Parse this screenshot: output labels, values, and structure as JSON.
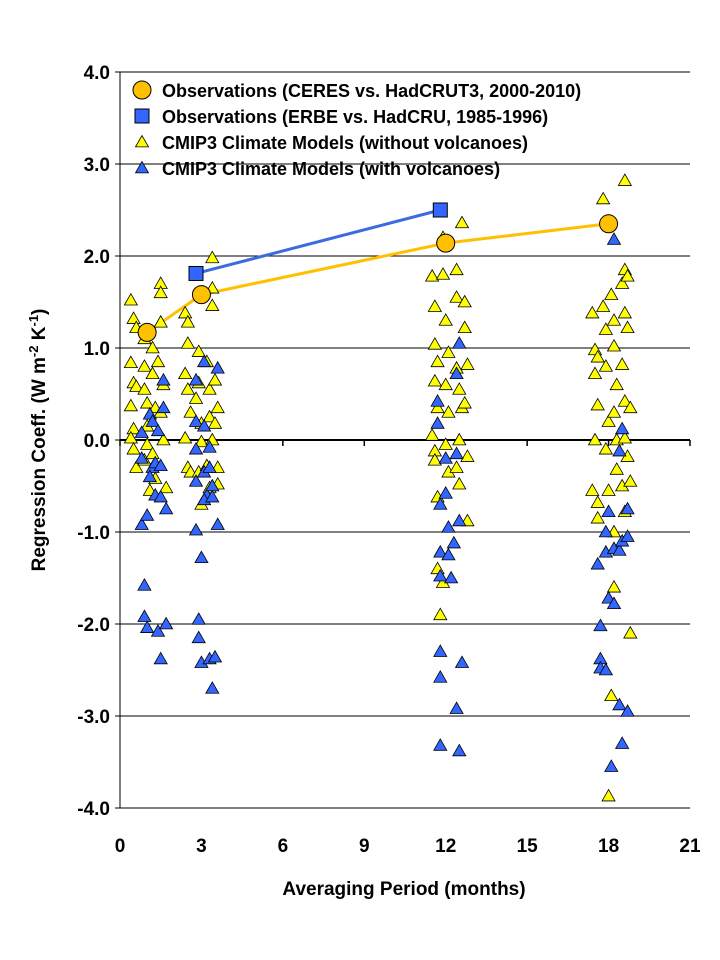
{
  "chart_data": {
    "type": "scatter",
    "title": "",
    "xlabel": "Averaging Period (months)",
    "ylabel_main": "Regression Coeff. (W m",
    "ylabel_sup1": "-2",
    "ylabel_mid": " K",
    "ylabel_sup2": "-1",
    "ylabel_end": ")",
    "xlim": [
      0,
      21
    ],
    "ylim": [
      -4.0,
      4.0
    ],
    "x_ticks": [
      0,
      3,
      6,
      9,
      12,
      15,
      18,
      21
    ],
    "x_tick_labels": [
      "0",
      "3",
      "6",
      "9",
      "12",
      "15",
      "18",
      "21"
    ],
    "y_ticks": [
      4.0,
      3.0,
      2.0,
      1.0,
      0.0,
      -1.0,
      -2.0,
      -3.0,
      -4.0
    ],
    "y_tick_labels": [
      "4.0",
      "3.0",
      "2.0",
      "1.0",
      "0.0",
      "-1.0",
      "-2.0",
      "-3.0",
      "-4.0"
    ],
    "grid": "horizontal",
    "legend_position": "top-left",
    "series": [
      {
        "name": "Observations (CERES vs. HadCRUT3, 2000-2010)",
        "marker": "circle",
        "line": true,
        "color": "#ffc000",
        "line_color": "#ffc000",
        "points": [
          [
            1,
            1.17
          ],
          [
            3,
            1.58
          ],
          [
            12,
            2.14
          ],
          [
            18,
            2.35
          ]
        ]
      },
      {
        "name": "Observations (ERBE vs. HadCRU, 1985-1996)",
        "marker": "square",
        "line": true,
        "color": "#3366ff",
        "line_color": "#3a6be0",
        "points": [
          [
            2.8,
            1.81
          ],
          [
            11.8,
            2.5
          ]
        ]
      },
      {
        "name": "CMIP3 Climate Models (without volcanoes)",
        "marker": "triangle",
        "line": false,
        "color": "#ffff00",
        "points": [
          [
            0.4,
            1.52
          ],
          [
            0.5,
            1.32
          ],
          [
            0.6,
            1.22
          ],
          [
            0.4,
            0.84
          ],
          [
            0.5,
            0.62
          ],
          [
            0.6,
            0.58
          ],
          [
            0.4,
            0.37
          ],
          [
            0.5,
            0.12
          ],
          [
            0.4,
            0.02
          ],
          [
            0.5,
            -0.1
          ],
          [
            0.6,
            -0.3
          ],
          [
            0.9,
            1.1
          ],
          [
            0.9,
            0.8
          ],
          [
            0.9,
            0.55
          ],
          [
            1.0,
            0.4
          ],
          [
            1.0,
            0.15
          ],
          [
            1.0,
            -0.05
          ],
          [
            0.9,
            -0.22
          ],
          [
            1.2,
            1.0
          ],
          [
            1.2,
            0.72
          ],
          [
            1.3,
            0.35
          ],
          [
            1.2,
            -0.15
          ],
          [
            1.3,
            -0.42
          ],
          [
            1.1,
            -0.55
          ],
          [
            1.5,
            1.7
          ],
          [
            1.5,
            1.6
          ],
          [
            1.5,
            1.28
          ],
          [
            1.4,
            0.85
          ],
          [
            1.6,
            0.6
          ],
          [
            1.5,
            0.3
          ],
          [
            1.6,
            0.0
          ],
          [
            1.7,
            -0.52
          ],
          [
            2.4,
            1.38
          ],
          [
            2.5,
            1.28
          ],
          [
            2.5,
            1.05
          ],
          [
            2.4,
            0.72
          ],
          [
            2.5,
            0.55
          ],
          [
            2.6,
            0.3
          ],
          [
            2.4,
            0.02
          ],
          [
            2.5,
            -0.3
          ],
          [
            2.6,
            -0.35
          ],
          [
            2.9,
            0.96
          ],
          [
            2.9,
            0.62
          ],
          [
            2.8,
            0.45
          ],
          [
            3.0,
            0.18
          ],
          [
            3.0,
            -0.02
          ],
          [
            2.9,
            -0.35
          ],
          [
            3.0,
            -0.7
          ],
          [
            3.2,
            0.85
          ],
          [
            3.3,
            0.55
          ],
          [
            3.3,
            0.25
          ],
          [
            3.4,
            0.0
          ],
          [
            3.2,
            -0.28
          ],
          [
            3.3,
            -0.52
          ],
          [
            3.4,
            1.98
          ],
          [
            3.4,
            1.65
          ],
          [
            3.4,
            1.46
          ],
          [
            3.5,
            0.65
          ],
          [
            3.6,
            0.35
          ],
          [
            3.5,
            0.18
          ],
          [
            3.6,
            -0.3
          ],
          [
            3.6,
            -0.48
          ],
          [
            11.5,
            1.78
          ],
          [
            11.6,
            1.45
          ],
          [
            11.6,
            1.04
          ],
          [
            11.7,
            0.85
          ],
          [
            11.6,
            0.64
          ],
          [
            11.7,
            0.35
          ],
          [
            11.5,
            0.05
          ],
          [
            11.6,
            -0.12
          ],
          [
            11.6,
            -0.22
          ],
          [
            11.7,
            -0.62
          ],
          [
            11.7,
            -1.4
          ],
          [
            11.8,
            -1.9
          ],
          [
            11.9,
            2.2
          ],
          [
            11.9,
            1.8
          ],
          [
            12.0,
            1.3
          ],
          [
            12.1,
            0.95
          ],
          [
            12.0,
            0.6
          ],
          [
            12.1,
            0.3
          ],
          [
            12.0,
            -0.05
          ],
          [
            12.1,
            -0.35
          ],
          [
            11.9,
            -1.55
          ],
          [
            12.4,
            1.85
          ],
          [
            12.4,
            1.55
          ],
          [
            12.4,
            0.78
          ],
          [
            12.5,
            0.55
          ],
          [
            12.6,
            0.35
          ],
          [
            12.5,
            0.0
          ],
          [
            12.4,
            -0.3
          ],
          [
            12.5,
            -0.48
          ],
          [
            12.6,
            2.36
          ],
          [
            12.7,
            1.5
          ],
          [
            12.7,
            1.22
          ],
          [
            12.8,
            0.82
          ],
          [
            12.7,
            0.4
          ],
          [
            12.8,
            -0.18
          ],
          [
            12.8,
            -0.88
          ],
          [
            17.4,
            1.38
          ],
          [
            17.5,
            0.98
          ],
          [
            17.6,
            0.9
          ],
          [
            17.5,
            0.72
          ],
          [
            17.6,
            0.38
          ],
          [
            17.5,
            0.0
          ],
          [
            17.4,
            -0.55
          ],
          [
            17.6,
            -0.68
          ],
          [
            17.6,
            -0.85
          ],
          [
            17.8,
            2.62
          ],
          [
            17.8,
            1.45
          ],
          [
            17.9,
            1.2
          ],
          [
            17.9,
            0.8
          ],
          [
            18.0,
            0.2
          ],
          [
            17.9,
            -0.1
          ],
          [
            18.0,
            -0.55
          ],
          [
            18.1,
            1.58
          ],
          [
            18.2,
            1.3
          ],
          [
            18.2,
            1.02
          ],
          [
            18.3,
            0.6
          ],
          [
            18.2,
            0.3
          ],
          [
            18.3,
            0.0
          ],
          [
            18.3,
            -0.32
          ],
          [
            18.2,
            -1.0
          ],
          [
            18.2,
            -1.6
          ],
          [
            18.1,
            -2.78
          ],
          [
            18.0,
            -3.87
          ],
          [
            18.5,
            1.7
          ],
          [
            18.6,
            1.38
          ],
          [
            18.5,
            0.82
          ],
          [
            18.6,
            0.42
          ],
          [
            18.6,
            0.02
          ],
          [
            18.5,
            -0.5
          ],
          [
            18.6,
            -0.78
          ],
          [
            18.6,
            2.82
          ],
          [
            18.6,
            1.85
          ],
          [
            18.7,
            1.78
          ],
          [
            18.7,
            1.22
          ],
          [
            18.8,
            0.35
          ],
          [
            18.7,
            -0.18
          ],
          [
            18.8,
            -0.45
          ],
          [
            18.8,
            -2.1
          ]
        ]
      },
      {
        "name": "CMIP3 Climate Models (with volcanoes)",
        "marker": "triangle",
        "line": false,
        "color": "#3366ff",
        "points": [
          [
            0.8,
            0.08
          ],
          [
            0.8,
            -0.2
          ],
          [
            0.8,
            -0.92
          ],
          [
            0.9,
            -1.58
          ],
          [
            0.9,
            -1.92
          ],
          [
            1.0,
            -2.04
          ],
          [
            1.0,
            -0.82
          ],
          [
            1.1,
            0.28
          ],
          [
            1.2,
            0.2
          ],
          [
            1.2,
            -0.3
          ],
          [
            1.1,
            -0.4
          ],
          [
            1.3,
            -0.25
          ],
          [
            1.3,
            -0.6
          ],
          [
            1.4,
            0.1
          ],
          [
            1.5,
            -0.28
          ],
          [
            1.5,
            -0.62
          ],
          [
            1.4,
            -2.08
          ],
          [
            1.5,
            -2.38
          ],
          [
            1.6,
            0.65
          ],
          [
            1.6,
            0.35
          ],
          [
            1.7,
            -0.75
          ],
          [
            1.7,
            -2.0
          ],
          [
            2.8,
            0.65
          ],
          [
            2.8,
            0.2
          ],
          [
            2.8,
            -0.1
          ],
          [
            2.8,
            -0.45
          ],
          [
            2.8,
            -0.98
          ],
          [
            2.9,
            -1.95
          ],
          [
            2.9,
            -2.15
          ],
          [
            3.0,
            -2.42
          ],
          [
            3.0,
            -1.28
          ],
          [
            3.1,
            0.85
          ],
          [
            3.1,
            0.15
          ],
          [
            3.1,
            -0.35
          ],
          [
            3.2,
            -0.6
          ],
          [
            3.1,
            -0.65
          ],
          [
            3.3,
            -0.08
          ],
          [
            3.3,
            -0.3
          ],
          [
            3.4,
            -0.5
          ],
          [
            3.4,
            -0.62
          ],
          [
            3.3,
            -2.38
          ],
          [
            3.4,
            -2.7
          ],
          [
            3.5,
            -2.36
          ],
          [
            3.6,
            0.78
          ],
          [
            3.6,
            -0.92
          ],
          [
            11.7,
            0.42
          ],
          [
            11.7,
            0.18
          ],
          [
            11.8,
            -0.7
          ],
          [
            11.8,
            -1.22
          ],
          [
            11.8,
            -1.48
          ],
          [
            11.8,
            -2.3
          ],
          [
            11.8,
            -2.58
          ],
          [
            11.8,
            -3.32
          ],
          [
            12.0,
            -0.2
          ],
          [
            12.0,
            -0.58
          ],
          [
            12.1,
            -0.95
          ],
          [
            12.1,
            -1.25
          ],
          [
            12.2,
            -1.5
          ],
          [
            12.3,
            -1.12
          ],
          [
            12.4,
            0.72
          ],
          [
            12.4,
            -0.15
          ],
          [
            12.5,
            1.05
          ],
          [
            12.5,
            -0.88
          ],
          [
            12.4,
            -2.92
          ],
          [
            12.5,
            -3.38
          ],
          [
            12.6,
            -2.42
          ],
          [
            17.6,
            -1.35
          ],
          [
            17.7,
            -2.02
          ],
          [
            17.7,
            -2.38
          ],
          [
            17.7,
            -2.48
          ],
          [
            17.9,
            -1.0
          ],
          [
            17.9,
            -1.22
          ],
          [
            17.9,
            -2.5
          ],
          [
            18.0,
            -0.78
          ],
          [
            18.0,
            -1.72
          ],
          [
            18.1,
            -3.55
          ],
          [
            18.2,
            2.18
          ],
          [
            18.2,
            -1.18
          ],
          [
            18.2,
            -1.78
          ],
          [
            18.4,
            -0.12
          ],
          [
            18.4,
            -1.2
          ],
          [
            18.4,
            -2.88
          ],
          [
            18.5,
            0.12
          ],
          [
            18.5,
            -1.1
          ],
          [
            18.5,
            -3.3
          ],
          [
            18.7,
            -0.75
          ],
          [
            18.7,
            -1.05
          ],
          [
            18.7,
            -2.95
          ]
        ]
      }
    ]
  }
}
